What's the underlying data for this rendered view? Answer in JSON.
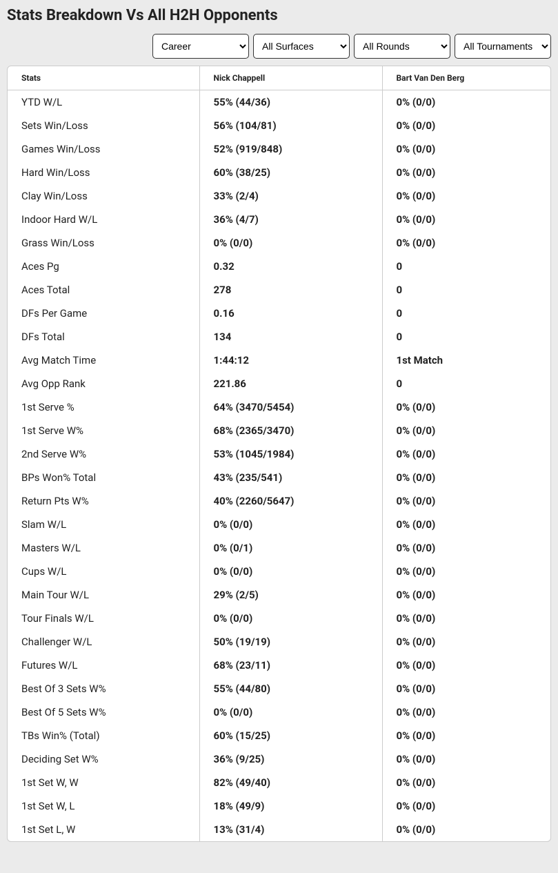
{
  "title": "Stats Breakdown Vs All H2H Opponents",
  "filters": {
    "period": "Career",
    "surface": "All Surfaces",
    "round": "All Rounds",
    "tournament": "All Tournaments"
  },
  "columns": {
    "stats": "Stats",
    "player1": "Nick Chappell",
    "player2": "Bart Van Den Berg"
  },
  "rows": [
    {
      "stat": "YTD W/L",
      "p1": "55% (44/36)",
      "p2": "0% (0/0)"
    },
    {
      "stat": "Sets Win/Loss",
      "p1": "56% (104/81)",
      "p2": "0% (0/0)"
    },
    {
      "stat": "Games Win/Loss",
      "p1": "52% (919/848)",
      "p2": "0% (0/0)"
    },
    {
      "stat": "Hard Win/Loss",
      "p1": "60% (38/25)",
      "p2": "0% (0/0)"
    },
    {
      "stat": "Clay Win/Loss",
      "p1": "33% (2/4)",
      "p2": "0% (0/0)"
    },
    {
      "stat": "Indoor Hard W/L",
      "p1": "36% (4/7)",
      "p2": "0% (0/0)"
    },
    {
      "stat": "Grass Win/Loss",
      "p1": "0% (0/0)",
      "p2": "0% (0/0)"
    },
    {
      "stat": "Aces Pg",
      "p1": "0.32",
      "p2": "0"
    },
    {
      "stat": "Aces Total",
      "p1": "278",
      "p2": "0"
    },
    {
      "stat": "DFs Per Game",
      "p1": "0.16",
      "p2": "0"
    },
    {
      "stat": "DFs Total",
      "p1": "134",
      "p2": "0"
    },
    {
      "stat": "Avg Match Time",
      "p1": "1:44:12",
      "p2": "1st Match"
    },
    {
      "stat": "Avg Opp Rank",
      "p1": "221.86",
      "p2": "0"
    },
    {
      "stat": "1st Serve %",
      "p1": "64% (3470/5454)",
      "p2": "0% (0/0)"
    },
    {
      "stat": "1st Serve W%",
      "p1": "68% (2365/3470)",
      "p2": "0% (0/0)"
    },
    {
      "stat": "2nd Serve W%",
      "p1": "53% (1045/1984)",
      "p2": "0% (0/0)"
    },
    {
      "stat": "BPs Won% Total",
      "p1": "43% (235/541)",
      "p2": "0% (0/0)"
    },
    {
      "stat": "Return Pts W%",
      "p1": "40% (2260/5647)",
      "p2": "0% (0/0)"
    },
    {
      "stat": "Slam W/L",
      "p1": "0% (0/0)",
      "p2": "0% (0/0)"
    },
    {
      "stat": "Masters W/L",
      "p1": "0% (0/1)",
      "p2": "0% (0/0)"
    },
    {
      "stat": "Cups W/L",
      "p1": "0% (0/0)",
      "p2": "0% (0/0)"
    },
    {
      "stat": "Main Tour W/L",
      "p1": "29% (2/5)",
      "p2": "0% (0/0)"
    },
    {
      "stat": "Tour Finals W/L",
      "p1": "0% (0/0)",
      "p2": "0% (0/0)"
    },
    {
      "stat": "Challenger W/L",
      "p1": "50% (19/19)",
      "p2": "0% (0/0)"
    },
    {
      "stat": "Futures W/L",
      "p1": "68% (23/11)",
      "p2": "0% (0/0)"
    },
    {
      "stat": "Best Of 3 Sets W%",
      "p1": "55% (44/80)",
      "p2": "0% (0/0)"
    },
    {
      "stat": "Best Of 5 Sets W%",
      "p1": "0% (0/0)",
      "p2": "0% (0/0)"
    },
    {
      "stat": "TBs Win% (Total)",
      "p1": "60% (15/25)",
      "p2": "0% (0/0)"
    },
    {
      "stat": "Deciding Set W%",
      "p1": "36% (9/25)",
      "p2": "0% (0/0)"
    },
    {
      "stat": "1st Set W, W",
      "p1": "82% (49/40)",
      "p2": "0% (0/0)"
    },
    {
      "stat": "1st Set W, L",
      "p1": "18% (49/9)",
      "p2": "0% (0/0)"
    },
    {
      "stat": "1st Set L, W",
      "p1": "13% (31/4)",
      "p2": "0% (0/0)"
    }
  ]
}
